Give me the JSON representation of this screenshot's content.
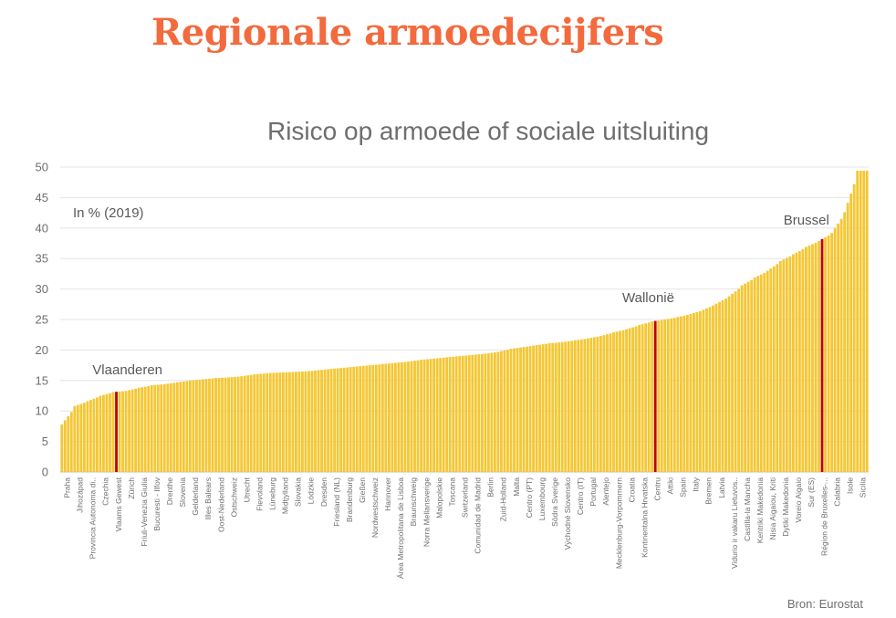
{
  "header": {
    "title": "Regionale armoedecijfers",
    "subtitle": "Risico op armoede of sociale uitsluiting",
    "unit_note": "In % (2019)",
    "source": "Bron: Eurostat"
  },
  "colors": {
    "bar": "#f4c734",
    "highlight": "#c00000",
    "title": "#f26a3d",
    "grid": "#e4e4e4"
  },
  "chart_data": {
    "type": "bar",
    "title": "Risico op armoede of sociale uitsluiting",
    "ylim": [
      0,
      50
    ],
    "yticks": [
      0,
      5,
      10,
      15,
      20,
      25,
      30,
      35,
      40,
      45,
      50
    ],
    "grid": true,
    "highlights": [
      "Vlaams Gewest",
      "Centru",
      "Région de Bruxelles-..."
    ],
    "annotations": [
      {
        "label": "Vlaanderen",
        "category": "Vlaams Gewest"
      },
      {
        "label": "Wallonië",
        "category": "Centru"
      },
      {
        "label": "Brussel",
        "category": "Région de Bruxelles-..."
      }
    ],
    "categories": [
      "Praha",
      "Jihozápad",
      "Provincia Autonoma di..",
      "Czechia",
      "Vlaams Gewest",
      "Zürich",
      "Friuli-Venezia Giulia",
      "Bucuresti - Ilfov",
      "Drenthe",
      "Slovenia",
      "Gelderland",
      "Illes Balears",
      "Oost-Nederland",
      "Ostschweiz",
      "Utrecht",
      "Flevoland",
      "Lüneburg",
      "Midtjylland",
      "Slovakia",
      "Lódzkie",
      "Dresden",
      "Friesland (NL)",
      "Brandenburg",
      "Gießen",
      "Nordwestschweiz",
      "Hannover",
      "Área Metropolitana de Lisboa",
      "Braunschweig",
      "Norra Mellansverige",
      "Malopolskie",
      "Toscana",
      "Switzerland",
      "Comunidad de Madrid",
      "Berlin",
      "Zuid-Holland",
      "Malta",
      "Centro (PT)",
      "Luxembourg",
      "Södra Sverige",
      "Východné Slovensko",
      "Centro (IT)",
      "Portugal",
      "Alentejo",
      "Mecklenburg-Vorpommern",
      "Croatia",
      "Kontinentalna Hrvatska",
      "Centru",
      "Attiki",
      "Spain",
      "Italy",
      "Bremen",
      "Latvia",
      "Vidurio ir vakaru Lietuvos..",
      "Castilla-la Mancha",
      "Kentriki Makedonia",
      "Nisia Aigaiou, Kriti",
      "Dytiki Makedonia",
      "Voreio Aigaio",
      "Sur (ES)",
      "Région de Bruxelles-...",
      "Calabria",
      "Isole",
      "Sicilia"
    ],
    "values": [
      7.8,
      10.8,
      11.6,
      12.5,
      13.1,
      13.3,
      13.8,
      14.2,
      14.4,
      14.7,
      15.0,
      15.2,
      15.4,
      15.5,
      15.7,
      16.0,
      16.2,
      16.3,
      16.4,
      16.5,
      16.7,
      16.9,
      17.1,
      17.3,
      17.5,
      17.7,
      17.9,
      18.1,
      18.4,
      18.6,
      18.8,
      19.0,
      19.2,
      19.4,
      19.7,
      20.2,
      20.5,
      20.8,
      21.1,
      21.3,
      21.6,
      21.9,
      22.3,
      22.9,
      23.4,
      24.1,
      24.7,
      25.0,
      25.4,
      25.9,
      26.6,
      27.6,
      28.8,
      30.6,
      31.9,
      33.0,
      34.6,
      35.7,
      36.9,
      37.9,
      39.2,
      42.6,
      49.4
    ]
  }
}
